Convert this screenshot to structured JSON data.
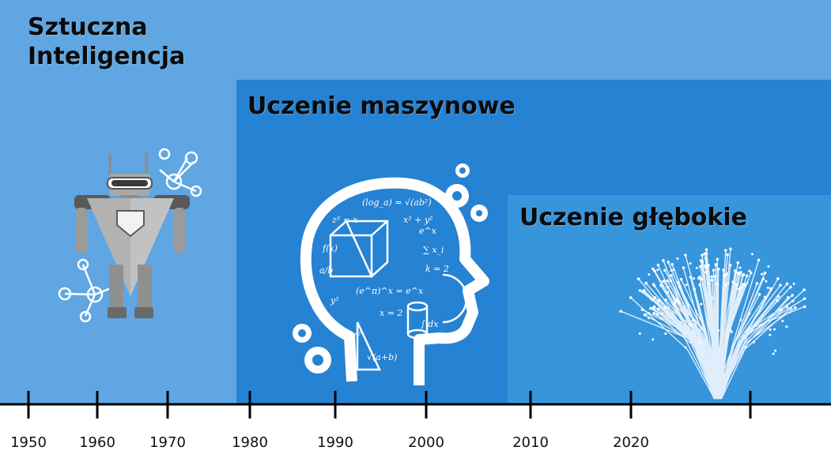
{
  "panels": {
    "ai": {
      "title": "Sztuczna\nInteligencja",
      "color": "#5fa6e2",
      "icon": "robot-icon"
    },
    "ml": {
      "title": "Uczenie maszynowe",
      "color": "#2682d3",
      "icon": "head-with-formulas-icon"
    },
    "dl": {
      "title": "Uczenie głębokie",
      "color": "#3795dc",
      "icon": "brain-circuit-tree-icon"
    }
  },
  "timeline": {
    "labels": [
      "1950",
      "1960",
      "1970",
      "1980",
      "1990",
      "2000",
      "2010",
      "2020"
    ],
    "axis_color": "#000000"
  }
}
